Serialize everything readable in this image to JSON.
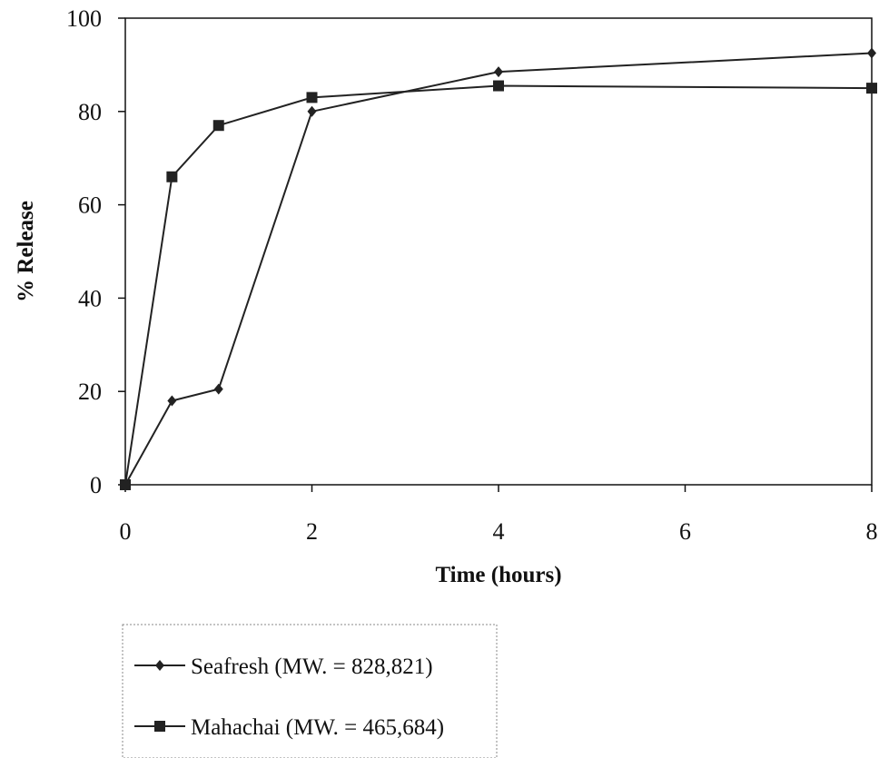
{
  "chart_data": {
    "type": "line",
    "title": "",
    "xlabel": "Time (hours)",
    "ylabel": "% Release",
    "x_categories": [
      "0",
      "0.5",
      "1",
      "2",
      "4",
      "8"
    ],
    "x_tick_labels": [
      "0",
      "2",
      "4",
      "6",
      "8"
    ],
    "y_ticks": [
      0,
      20,
      40,
      60,
      80,
      100
    ],
    "ylim": [
      0,
      100
    ],
    "grid": false,
    "legend_position": "bottom-left",
    "series": [
      {
        "name": "Seafresh (MW. = 828,821)",
        "marker": "diamond",
        "x": [
          0,
          0.5,
          1,
          2,
          4,
          8
        ],
        "y": [
          0,
          18,
          20.5,
          80,
          88.5,
          92.5
        ]
      },
      {
        "name": "Mahachai (MW. = 465,684)",
        "marker": "square",
        "x": [
          0,
          0.5,
          1,
          2,
          4,
          8
        ],
        "y": [
          0,
          66,
          77,
          83,
          85.5,
          85
        ]
      }
    ],
    "colors": {
      "line": "#222222",
      "axis": "#111111",
      "background": "#ffffff"
    }
  }
}
